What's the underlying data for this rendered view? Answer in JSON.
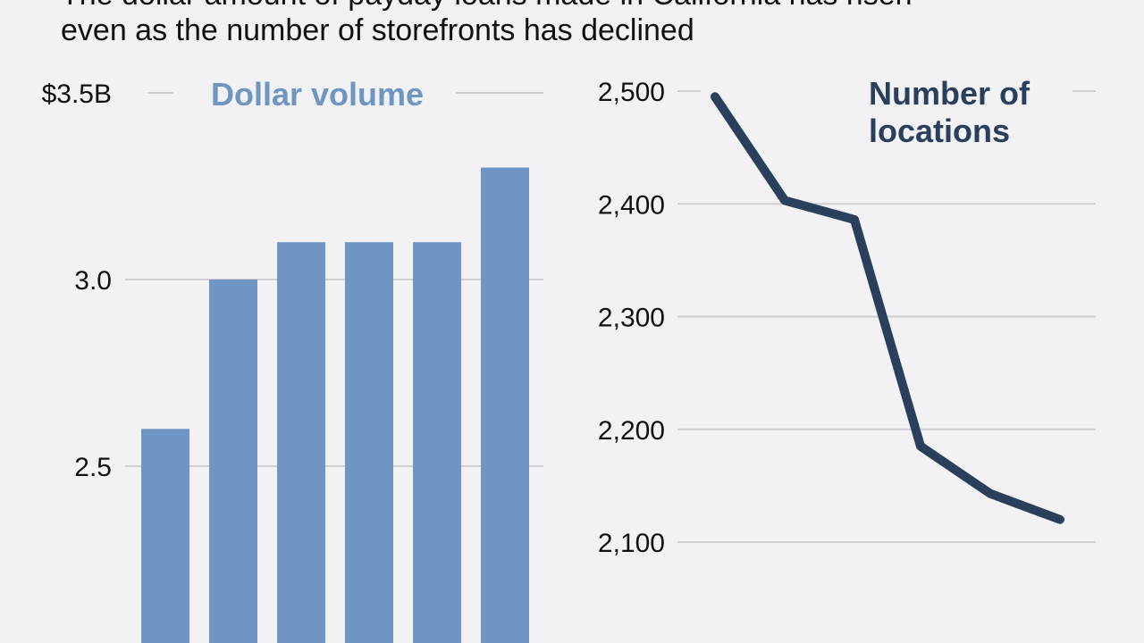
{
  "subtitle": {
    "line1": "The dollar amount of payday loans made in California has risen",
    "line2": "even as the number of storefronts has declined"
  },
  "colors": {
    "bar": "#6f96c2",
    "bar_title": "#6f96c2",
    "line": "#2a3f5c",
    "line_title": "#2a3f5c",
    "grid": "#cfcfd4",
    "text": "#111111",
    "background": "#f2f2f4"
  },
  "chart_data": [
    {
      "type": "bar",
      "title": "Dollar volume",
      "ylim": [
        2.0,
        3.5
      ],
      "yticks": [
        {
          "value": 3.5,
          "label": "$3.5B"
        },
        {
          "value": 3.0,
          "label": "3.0"
        },
        {
          "value": 2.5,
          "label": "2.5"
        }
      ],
      "values": [
        2.6,
        3.0,
        3.1,
        3.1,
        3.1,
        3.3
      ],
      "grid": true
    },
    {
      "type": "line",
      "title_lines": [
        "Number of",
        "locations"
      ],
      "ylim": [
        2000,
        2500
      ],
      "yticks": [
        {
          "value": 2500,
          "label": "2,500"
        },
        {
          "value": 2400,
          "label": "2,400"
        },
        {
          "value": 2300,
          "label": "2,300"
        },
        {
          "value": 2200,
          "label": "2,200"
        },
        {
          "value": 2100,
          "label": "2,100"
        }
      ],
      "values": [
        2495,
        2403,
        2386,
        2185,
        2143,
        2120
      ],
      "grid": true
    }
  ]
}
